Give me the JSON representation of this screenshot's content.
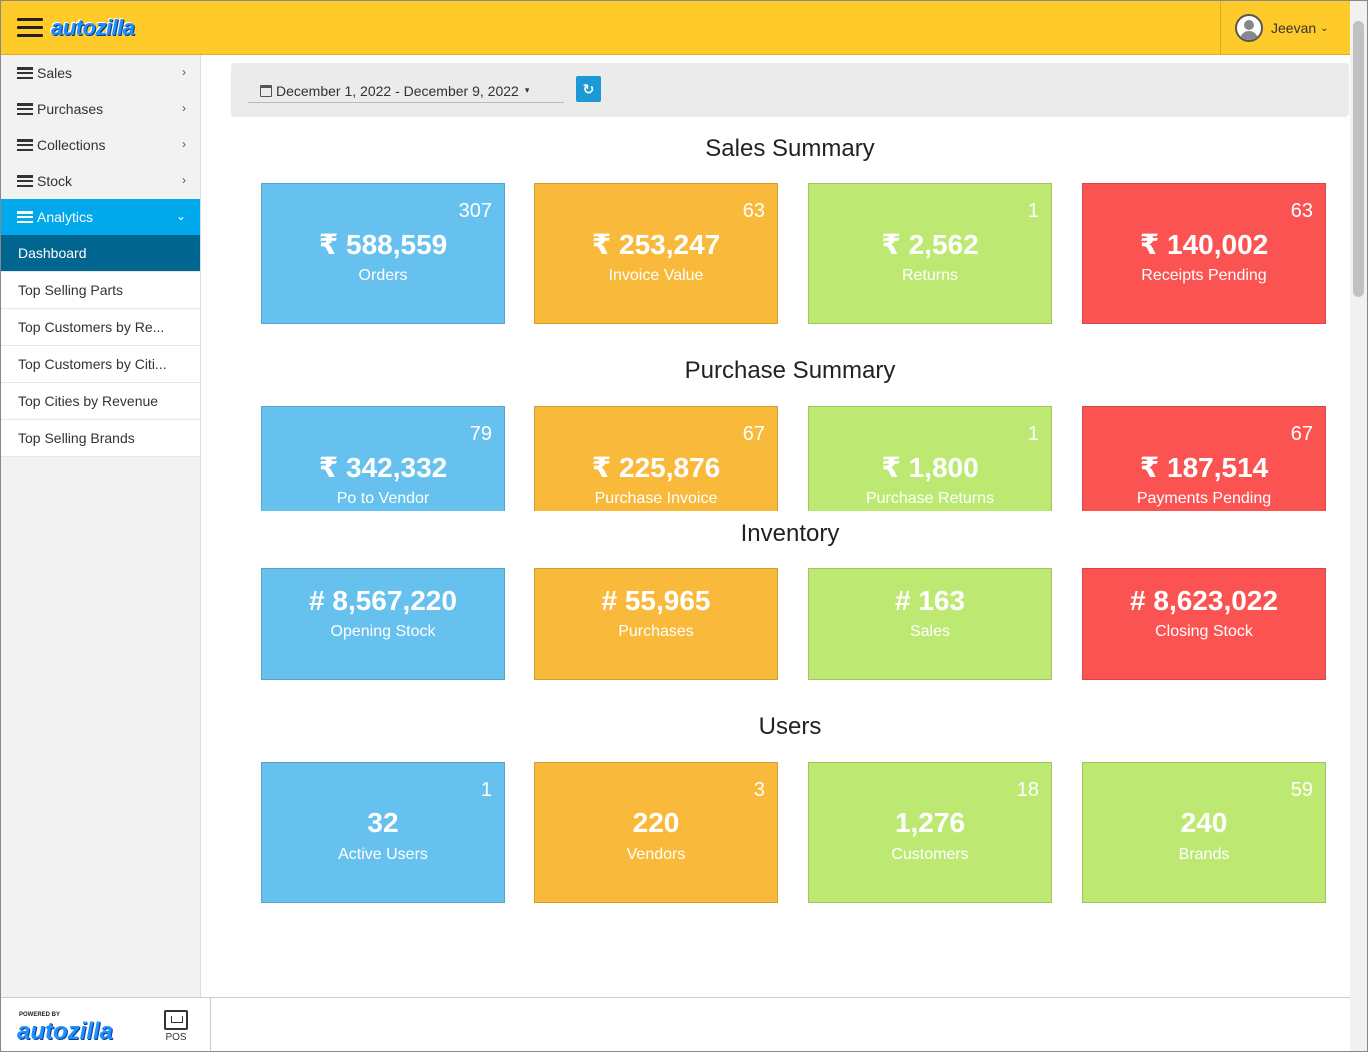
{
  "header": {
    "logo": "autozilla",
    "user_name": "Jeevan",
    "user_caret": "⌄"
  },
  "sidebar": {
    "items": [
      {
        "label": "Sales",
        "chevron": "›"
      },
      {
        "label": "Purchases",
        "chevron": "›"
      },
      {
        "label": "Collections",
        "chevron": "›"
      },
      {
        "label": "Stock",
        "chevron": "›"
      },
      {
        "label": "Analytics",
        "chevron": "⌄"
      }
    ],
    "subitems": [
      "Dashboard",
      "Top Selling Parts",
      "Top Customers by Re...",
      "Top Customers by Citi...",
      "Top Cities by Revenue",
      "Top Selling Brands"
    ],
    "footer": {
      "powered_by": "POWERED BY",
      "logo": "autozilla",
      "pos_label": "POS"
    }
  },
  "filter": {
    "date_range": "December 1, 2022 - December 9, 2022",
    "caret": "▾",
    "refresh_icon": "↻"
  },
  "sections": {
    "sales": {
      "title": "Sales Summary",
      "cards": [
        {
          "count": "307",
          "value": "₹ 588,559",
          "label": "Orders"
        },
        {
          "count": "63",
          "value": "₹ 253,247",
          "label": "Invoice Value"
        },
        {
          "count": "1",
          "value": "₹ 2,562",
          "label": "Returns"
        },
        {
          "count": "63",
          "value": "₹ 140,002",
          "label": "Receipts Pending"
        }
      ]
    },
    "purchase": {
      "title": "Purchase Summary",
      "cards": [
        {
          "count": "79",
          "value": "₹ 342,332",
          "label": "Po to Vendor"
        },
        {
          "count": "67",
          "value": "₹ 225,876",
          "label": "Purchase Invoice"
        },
        {
          "count": "1",
          "value": "₹ 1,800",
          "label": "Purchase Returns"
        },
        {
          "count": "67",
          "value": "₹ 187,514",
          "label": "Payments Pending"
        }
      ]
    },
    "inventory": {
      "title": "Inventory",
      "cards": [
        {
          "value": "# 8,567,220",
          "label": "Opening Stock"
        },
        {
          "value": "# 55,965",
          "label": "Purchases"
        },
        {
          "value": "# 163",
          "label": "Sales"
        },
        {
          "value": "# 8,623,022",
          "label": "Closing Stock"
        }
      ]
    },
    "users": {
      "title": "Users",
      "cards": [
        {
          "count": "1",
          "value": "32",
          "label": "Active Users"
        },
        {
          "count": "3",
          "value": "220",
          "label": "Vendors"
        },
        {
          "count": "18",
          "value": "1,276",
          "label": "Customers"
        },
        {
          "count": "59",
          "value": "240",
          "label": "Brands"
        }
      ]
    }
  },
  "colors": {
    "header": "#ffcb2b",
    "accent": "#00a8ec",
    "selected": "#00658f",
    "blue": "#66c1ef",
    "orange": "#f9b93a",
    "green": "#bde972",
    "red": "#fb5252"
  }
}
